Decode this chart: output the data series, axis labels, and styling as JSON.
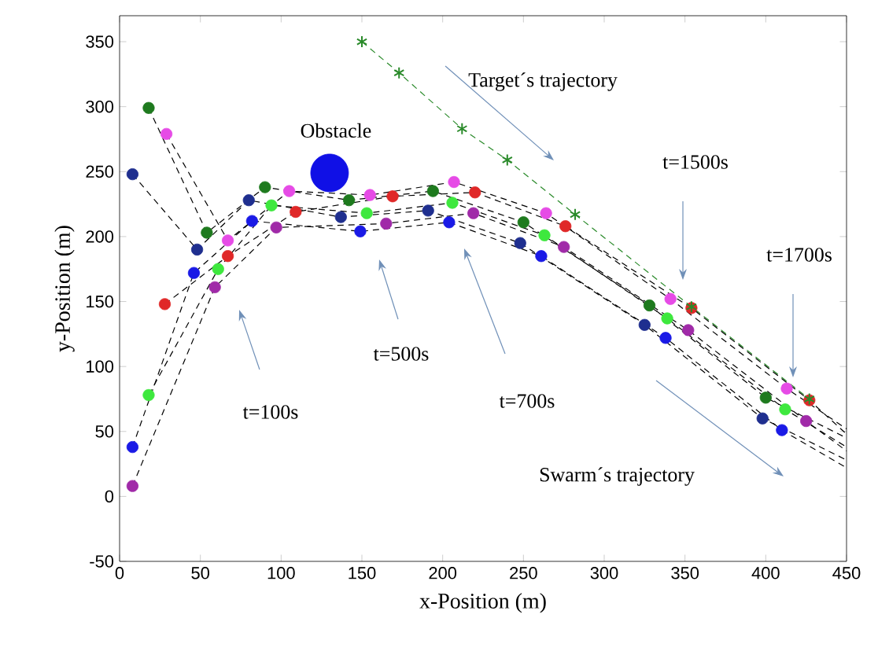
{
  "chart_data": {
    "type": "scatter",
    "xlabel": "x-Position (m)",
    "ylabel": "y-Position (m)",
    "xlim": [
      0,
      450
    ],
    "ylim": [
      -50,
      370
    ],
    "xticks": [
      0,
      50,
      100,
      150,
      200,
      250,
      300,
      350,
      400,
      450
    ],
    "yticks": [
      -50,
      0,
      50,
      100,
      150,
      200,
      250,
      300,
      350
    ],
    "series": [
      {
        "type": "line",
        "color": "#000000",
        "line_style": "dashed",
        "marker": "none",
        "x": [
          18,
          54,
          90,
          142,
          194,
          250,
          328,
          400,
          450
        ],
        "values": [
          299,
          203,
          238,
          228,
          235,
          211,
          147,
          76,
          45
        ]
      },
      {
        "type": "line",
        "color": "#000000",
        "line_style": "dashed",
        "marker": "none",
        "x": [
          29,
          67,
          105,
          155,
          207,
          264,
          341,
          413,
          450
        ],
        "values": [
          279,
          197,
          235,
          232,
          242,
          218,
          152,
          83,
          52
        ]
      },
      {
        "type": "line",
        "color": "#000000",
        "line_style": "dashed",
        "marker": "none",
        "x": [
          8,
          48,
          80,
          137,
          191,
          248,
          325,
          398,
          450
        ],
        "values": [
          248,
          190,
          228,
          215,
          220,
          195,
          132,
          60,
          28
        ]
      },
      {
        "type": "line",
        "color": "#000000",
        "line_style": "dashed",
        "marker": "none",
        "x": [
          28,
          67,
          109,
          169,
          220,
          276,
          354,
          427,
          450
        ],
        "values": [
          148,
          185,
          219,
          231,
          234,
          208,
          145,
          74,
          48
        ]
      },
      {
        "type": "line",
        "color": "#000000",
        "line_style": "dashed",
        "marker": "none",
        "x": [
          18,
          61,
          94,
          153,
          206,
          263,
          339,
          412,
          450
        ],
        "values": [
          78,
          175,
          224,
          218,
          226,
          201,
          137,
          67,
          38
        ]
      },
      {
        "type": "line",
        "color": "#000000",
        "line_style": "dashed",
        "marker": "none",
        "x": [
          8,
          46,
          82,
          149,
          204,
          261,
          338,
          410,
          450
        ],
        "values": [
          38,
          172,
          212,
          204,
          211,
          185,
          122,
          51,
          22
        ]
      },
      {
        "type": "line",
        "color": "#000000",
        "line_style": "dashed",
        "marker": "none",
        "x": [
          8,
          59,
          97,
          165,
          219,
          275,
          352,
          425,
          450
        ],
        "values": [
          8,
          161,
          207,
          210,
          218,
          192,
          128,
          58,
          35
        ]
      },
      {
        "color": "#1e7a1e",
        "marker": "circle",
        "x": [
          18,
          54,
          90,
          142,
          194,
          250,
          328,
          400
        ],
        "values": [
          299,
          203,
          238,
          228,
          235,
          211,
          147,
          76
        ]
      },
      {
        "color": "#e64be6",
        "marker": "circle",
        "x": [
          29,
          67,
          105,
          155,
          207,
          264,
          341,
          413
        ],
        "values": [
          279,
          197,
          235,
          232,
          242,
          218,
          152,
          83
        ]
      },
      {
        "color": "#1f2f8f",
        "marker": "circle",
        "x": [
          8,
          48,
          80,
          137,
          191,
          248,
          325,
          398
        ],
        "values": [
          248,
          190,
          228,
          215,
          220,
          195,
          132,
          60
        ]
      },
      {
        "color": "#e02828",
        "marker": "circle",
        "x": [
          28,
          67,
          109,
          169,
          220,
          276,
          354,
          427
        ],
        "values": [
          148,
          185,
          219,
          231,
          234,
          208,
          145,
          74
        ]
      },
      {
        "color": "#3ee83e",
        "marker": "circle",
        "x": [
          18,
          61,
          94,
          153,
          206,
          263,
          339,
          412
        ],
        "values": [
          78,
          175,
          224,
          218,
          226,
          201,
          137,
          67
        ]
      },
      {
        "color": "#1a1ae6",
        "marker": "circle",
        "x": [
          8,
          46,
          82,
          149,
          204,
          261,
          338,
          410
        ],
        "values": [
          38,
          172,
          212,
          204,
          211,
          185,
          122,
          51
        ]
      },
      {
        "color": "#a02aa8",
        "marker": "circle",
        "x": [
          8,
          59,
          97,
          165,
          219,
          275,
          352,
          425
        ],
        "values": [
          8,
          161,
          207,
          210,
          218,
          192,
          128,
          58
        ]
      },
      {
        "type": "line",
        "color": "#2a8a2a",
        "line_style": "dashed",
        "marker": "cross",
        "x": [
          150,
          173,
          212,
          240,
          282,
          354,
          427
        ],
        "values": [
          350,
          326,
          283,
          259,
          217,
          146,
          75
        ]
      },
      {
        "type": "bubble",
        "color": "#1010e6",
        "x": [
          130
        ],
        "values": [
          249
        ],
        "sizes": [
          1
        ]
      }
    ],
    "annotations": [
      {
        "text": "Obstacle",
        "x": 130,
        "y": 249
      },
      "Target´s trajectory",
      "t=100s",
      "t=500s",
      "t=700s",
      "t=1500s",
      "t=1700s",
      "Swarm´s trajectory"
    ]
  }
}
